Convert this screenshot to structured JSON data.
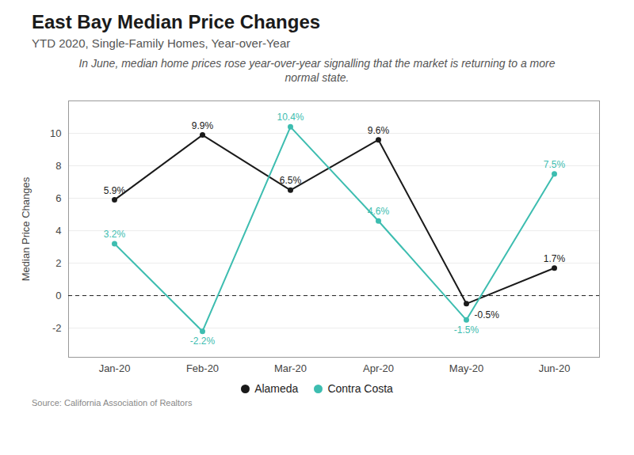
{
  "chart_data": {
    "type": "line",
    "title": "East Bay Median Price Changes",
    "subtitle": "YTD 2020, Single-Family Homes, Year-over-Year",
    "annotation": "In June, median home prices rose year-over-year signalling that the market is returning to a more\nnormal state.",
    "source": "Source:  California Association of Realtors",
    "categories": [
      "Jan-20",
      "Feb-20",
      "Mar-20",
      "Apr-20",
      "May-20",
      "Jun-20"
    ],
    "series": [
      {
        "name": "Alameda",
        "color": "#1a1a1a",
        "values": [
          5.9,
          9.9,
          6.5,
          9.6,
          -0.5,
          1.7
        ],
        "value_labels": [
          "5.9%",
          "9.9%",
          "6.5%",
          "9.6%",
          "-0.5%",
          "1.7%"
        ]
      },
      {
        "name": "Contra Costa",
        "color": "#3dbdb0",
        "values": [
          3.2,
          -2.2,
          10.4,
          4.6,
          -1.5,
          7.5
        ],
        "value_labels": [
          "3.2%",
          "-2.2%",
          "10.4%",
          "4.6%",
          "-1.5%",
          "7.5%"
        ]
      }
    ],
    "ylabel": "Median Price Changes",
    "ylim": [
      -3.8,
      12
    ],
    "yticks": [
      -2,
      0,
      2,
      4,
      6,
      8,
      10
    ],
    "grid": true,
    "data_labels": true,
    "marker": "circle",
    "legend": "bottom"
  }
}
